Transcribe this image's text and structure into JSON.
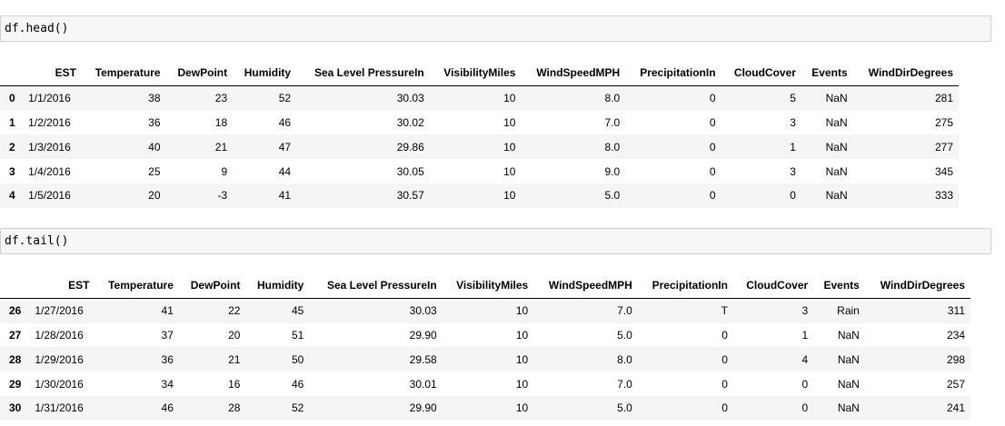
{
  "cells": [
    {
      "code": "df.head()",
      "columns": [
        "",
        "EST",
        "Temperature",
        "DewPoint",
        "Humidity",
        "Sea Level PressureIn",
        "VisibilityMiles",
        "WindSpeedMPH",
        "PrecipitationIn",
        "CloudCover",
        "Events",
        "WindDirDegrees"
      ],
      "rows": [
        {
          "index": "0",
          "values": [
            "1/1/2016",
            "38",
            "23",
            "52",
            "30.03",
            "10",
            "8.0",
            "0",
            "5",
            "NaN",
            "281"
          ]
        },
        {
          "index": "1",
          "values": [
            "1/2/2016",
            "36",
            "18",
            "46",
            "30.02",
            "10",
            "7.0",
            "0",
            "3",
            "NaN",
            "275"
          ]
        },
        {
          "index": "2",
          "values": [
            "1/3/2016",
            "40",
            "21",
            "47",
            "29.86",
            "10",
            "8.0",
            "0",
            "1",
            "NaN",
            "277"
          ]
        },
        {
          "index": "3",
          "values": [
            "1/4/2016",
            "25",
            "9",
            "44",
            "30.05",
            "10",
            "9.0",
            "0",
            "3",
            "NaN",
            "345"
          ]
        },
        {
          "index": "4",
          "values": [
            "1/5/2016",
            "20",
            "-3",
            "41",
            "30.57",
            "10",
            "5.0",
            "0",
            "0",
            "NaN",
            "333"
          ]
        }
      ]
    },
    {
      "code": "df.tail()",
      "columns": [
        "",
        "EST",
        "Temperature",
        "DewPoint",
        "Humidity",
        "Sea Level PressureIn",
        "VisibilityMiles",
        "WindSpeedMPH",
        "PrecipitationIn",
        "CloudCover",
        "Events",
        "WindDirDegrees"
      ],
      "rows": [
        {
          "index": "26",
          "values": [
            "1/27/2016",
            "41",
            "22",
            "45",
            "30.03",
            "10",
            "7.0",
            "T",
            "3",
            "Rain",
            "311"
          ]
        },
        {
          "index": "27",
          "values": [
            "1/28/2016",
            "37",
            "20",
            "51",
            "29.90",
            "10",
            "5.0",
            "0",
            "1",
            "NaN",
            "234"
          ]
        },
        {
          "index": "28",
          "values": [
            "1/29/2016",
            "36",
            "21",
            "50",
            "29.58",
            "10",
            "8.0",
            "0",
            "4",
            "NaN",
            "298"
          ]
        },
        {
          "index": "29",
          "values": [
            "1/30/2016",
            "34",
            "16",
            "46",
            "30.01",
            "10",
            "7.0",
            "0",
            "0",
            "NaN",
            "257"
          ]
        },
        {
          "index": "30",
          "values": [
            "1/31/2016",
            "46",
            "28",
            "52",
            "29.90",
            "10",
            "5.0",
            "0",
            "0",
            "NaN",
            "241"
          ]
        }
      ]
    }
  ]
}
